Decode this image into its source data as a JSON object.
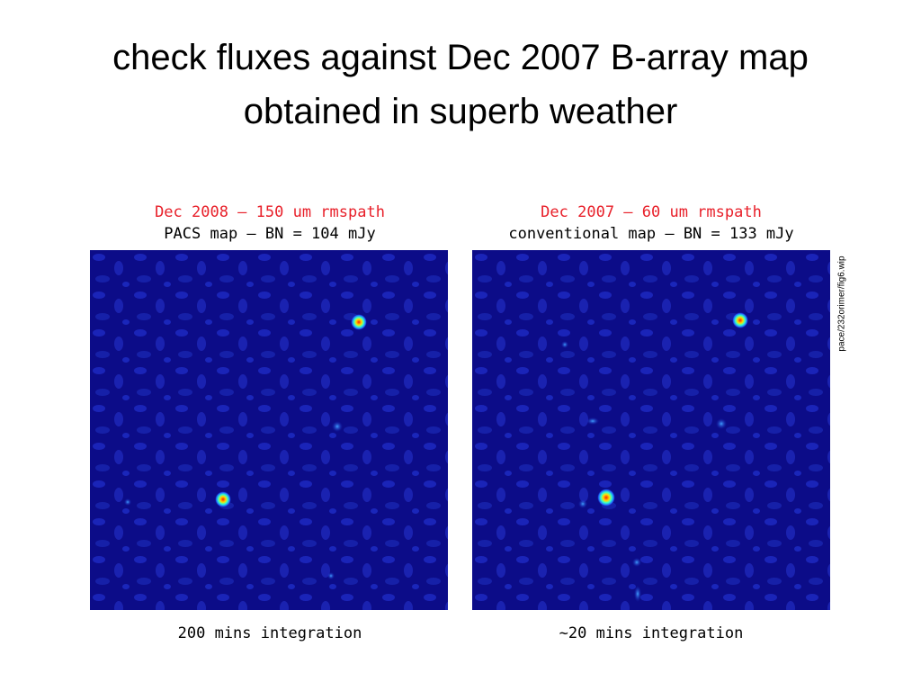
{
  "slide": {
    "title_lines": [
      "check fluxes against Dec 2007 B-array map",
      "obtained in superb weather"
    ],
    "panels": [
      {
        "heading": "Dec 2008 – 150 um rmspath",
        "subheading": "PACS map – BN = 104 mJy",
        "caption": "200 mins integration"
      },
      {
        "heading": "Dec 2007 – 60 um rmspath",
        "subheading": "conventional map – BN = 133 mJy",
        "caption": "~20 mins integration"
      }
    ],
    "side_label": "pace/232orimer/fig6.wip"
  }
}
